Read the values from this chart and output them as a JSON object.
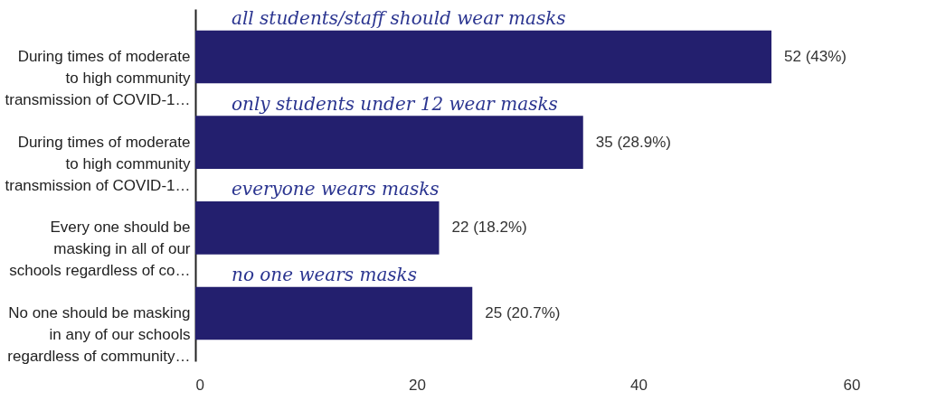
{
  "chart_data": {
    "type": "bar",
    "orientation": "horizontal",
    "categories": [
      "During times of moderate to high community transmission of COVID-1…",
      "During times of moderate to high community transmission of COVID-1…",
      "Every one should be masking in all of our schools regardless of co…",
      "No one should be masking in any of our schools regardless of community…"
    ],
    "values": [
      52,
      35,
      22,
      25
    ],
    "value_labels": [
      "52 (43%)",
      "35 (28.9%)",
      "22 (18.2%)",
      "25 (20.7%)"
    ],
    "color": "#231f6e",
    "xlim": [
      0,
      60
    ],
    "xticks": [
      0,
      20,
      40,
      60
    ],
    "grid": false,
    "annotations": [
      "all students/staff should wear masks",
      "only students under 12 wear masks",
      "everyone wears masks",
      "no one wears masks"
    ]
  }
}
